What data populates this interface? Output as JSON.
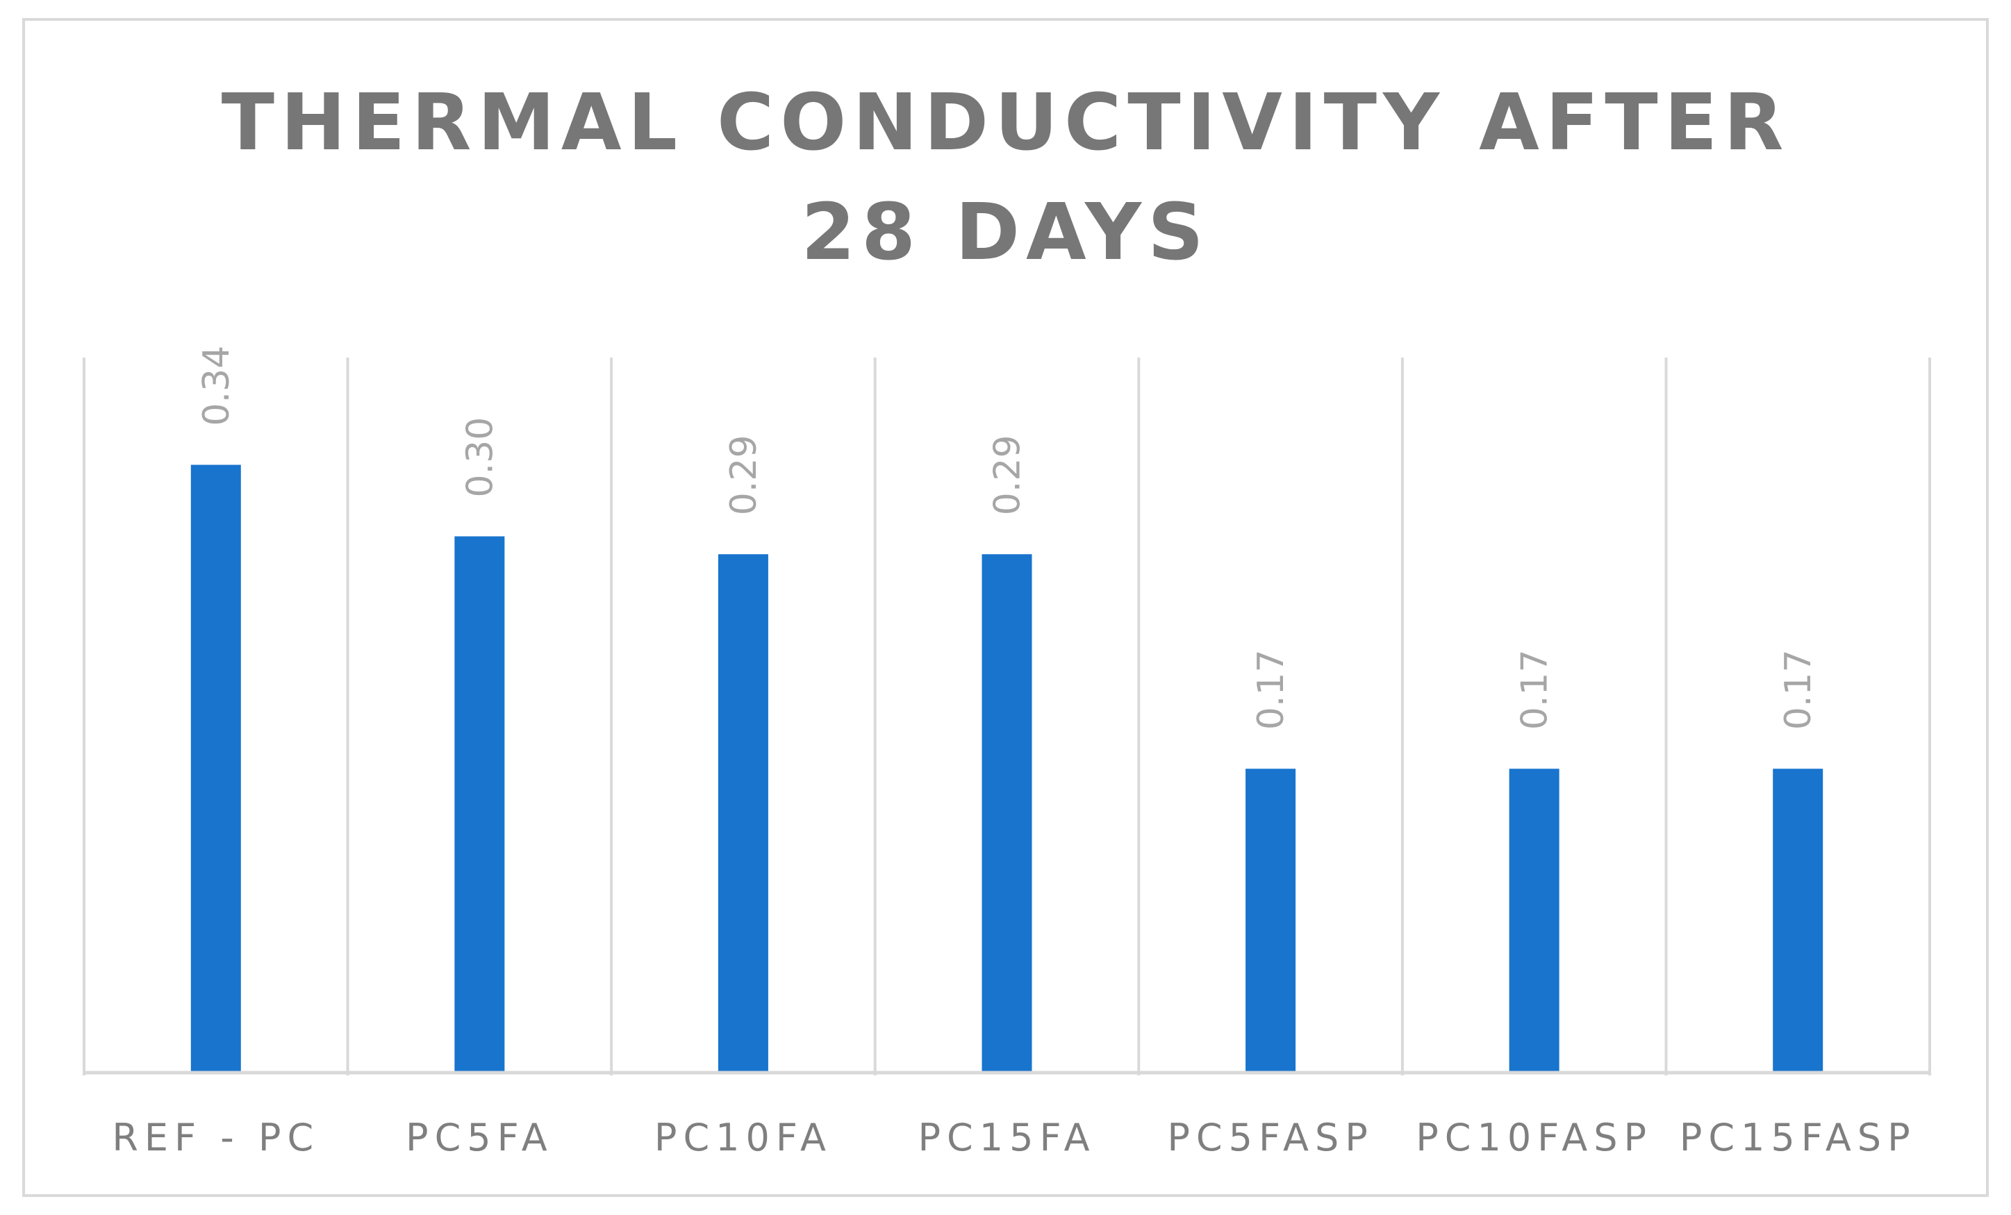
{
  "chart_data": {
    "type": "bar",
    "title": "THERMAL CONDUCTIVITY AFTER 28 DAYS",
    "title_lines": [
      "THERMAL CONDUCTIVITY AFTER",
      "28 DAYS"
    ],
    "categories": [
      "REF - PC",
      "PC5FA",
      "PC10FA",
      "PC15FA",
      "PC5FASP",
      "PC10FASP",
      "PC15FASP"
    ],
    "values": [
      0.34,
      0.3,
      0.29,
      0.29,
      0.17,
      0.17,
      0.17
    ],
    "data_labels": [
      "0.34",
      "0.30",
      "0.29",
      "0.29",
      "0.17",
      "0.17",
      "0.17"
    ],
    "xlabel": "",
    "ylabel": "",
    "ylim": [
      0,
      0.4
    ],
    "grid": "vertical",
    "legend": "none",
    "colors": {
      "bar": "#1874cd",
      "grid": "#d9d9d9",
      "axis": "#d9d9d9",
      "title": "#777777",
      "data_label": "#a6a6a6",
      "tick_label": "#7f7f7f"
    }
  }
}
